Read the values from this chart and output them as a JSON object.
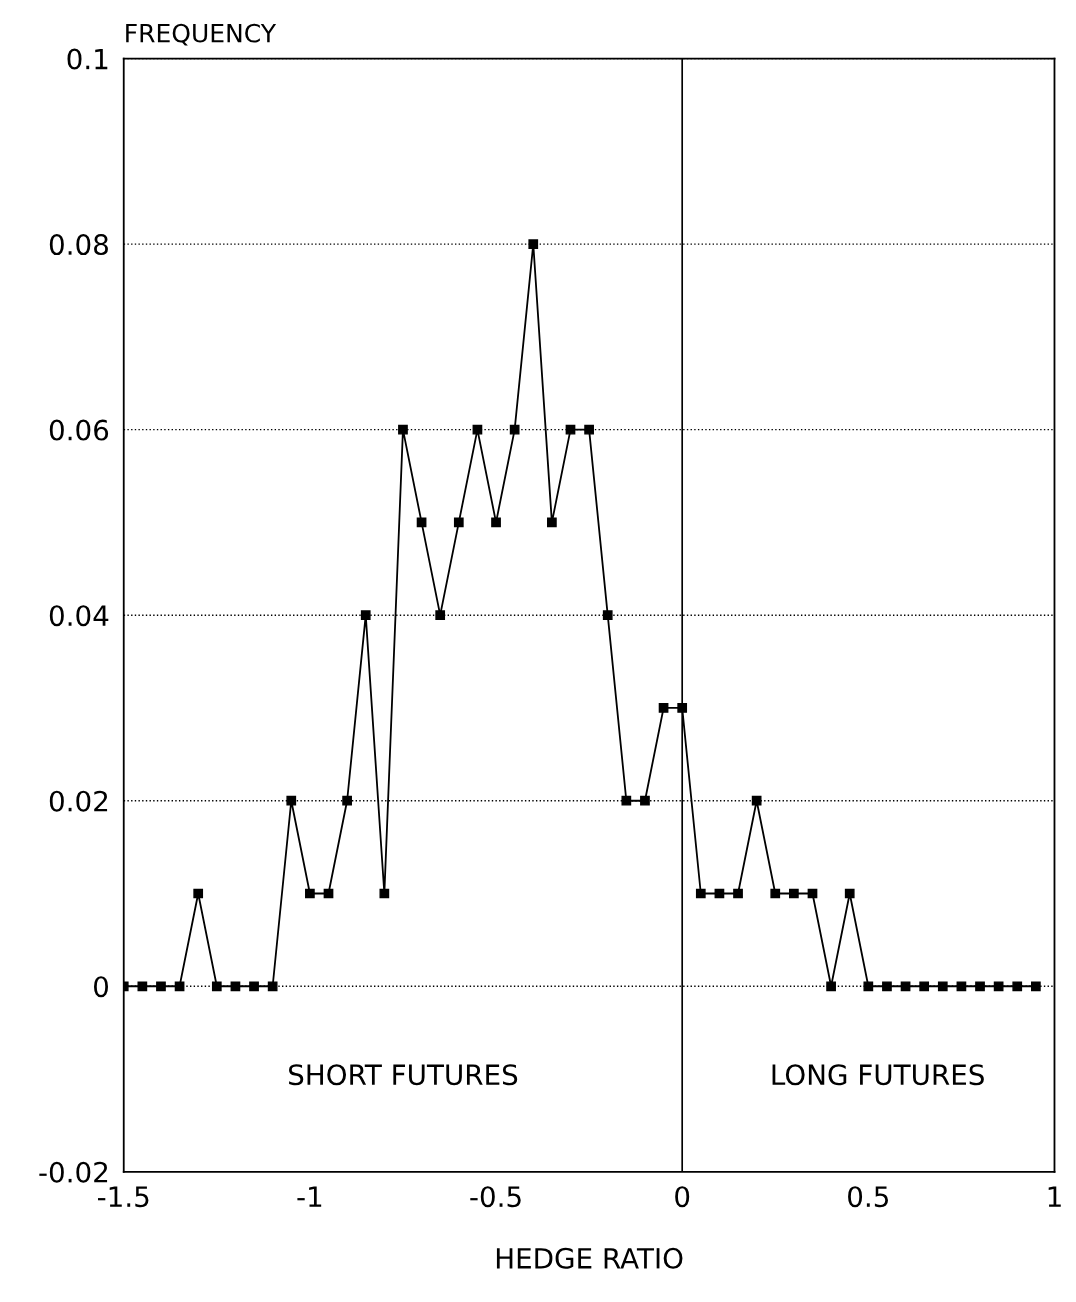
{
  "chart_data": {
    "type": "line",
    "xlabel": "HEDGE RATIO",
    "ylabel": "FREQUENCY",
    "x": [
      -1.5,
      -1.45,
      -1.4,
      -1.35,
      -1.3,
      -1.25,
      -1.2,
      -1.15,
      -1.1,
      -1.05,
      -1.0,
      -0.95,
      -0.9,
      -0.85,
      -0.8,
      -0.75,
      -0.7,
      -0.65,
      -0.6,
      -0.55,
      -0.5,
      -0.45,
      -0.4,
      -0.35,
      -0.3,
      -0.25,
      -0.2,
      -0.15,
      -0.1,
      -0.05,
      0,
      0.05,
      0.1,
      0.15,
      0.2,
      0.25,
      0.3,
      0.35,
      0.4,
      0.45,
      0.5,
      0.55,
      0.6,
      0.65,
      0.7,
      0.75,
      0.8,
      0.85,
      0.9,
      0.95
    ],
    "series": [
      {
        "color": "#000000",
        "values": [
          0,
          0,
          0,
          0,
          0.01,
          0,
          0,
          0,
          0,
          0.02,
          0.01,
          0.01,
          0.02,
          0.04,
          0.01,
          0.06,
          0.05,
          0.04,
          0.05,
          0.06,
          0.05,
          0.06,
          0.08,
          0.05,
          0.06,
          0.06,
          0.04,
          0.02,
          0.02,
          0.03,
          0.03,
          0.01,
          0.01,
          0.01,
          0.02,
          0.01,
          0.01,
          0.01,
          0,
          0.01,
          0,
          0,
          0,
          0,
          0,
          0,
          0,
          0,
          0,
          0
        ]
      }
    ],
    "marker": "square",
    "line_style": "solid",
    "grid": "y",
    "xlim": [
      -1.5,
      1
    ],
    "xticks": [
      -1.5,
      -1,
      -0.5,
      0,
      0.5,
      1
    ],
    "ylim": [
      -0.02,
      0.1
    ],
    "yticks": [
      -0.02,
      0,
      0.02,
      0.04,
      0.06,
      0.08,
      0.1
    ],
    "ref_lines": [
      {
        "axis": "x",
        "value": 0,
        "color": "#000000",
        "line_style": "solid"
      }
    ],
    "annotations": [
      "SHORT FUTURES",
      "LONG FUTURES"
    ]
  }
}
